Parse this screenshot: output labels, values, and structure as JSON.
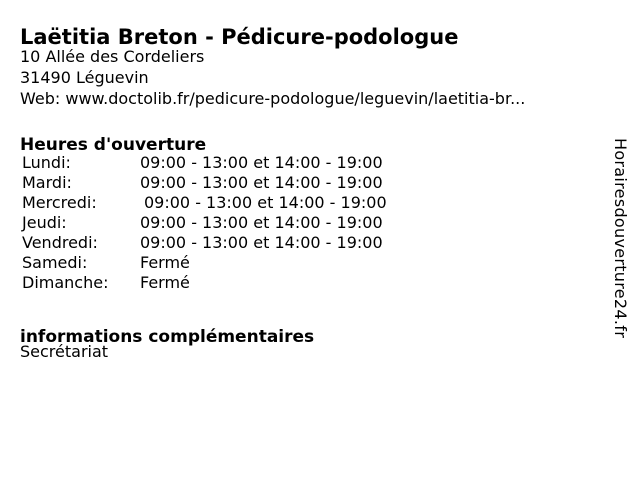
{
  "business": {
    "title": "Laëtitia Breton - Pédicure-podologue",
    "address_line1": "10 Allée des Cordeliers",
    "address_line2": "31490 Léguevin",
    "web_line": "Web: www.doctolib.fr/pedicure-podologue/leguevin/laetitia-br..."
  },
  "hours": {
    "heading": "Heures d'ouverture",
    "rows": [
      {
        "day": "Lundi:",
        "times": "09:00 - 13:00 et 14:00 - 19:00"
      },
      {
        "day": "Mardi:",
        "times": "09:00 - 13:00 et 14:00 - 19:00"
      },
      {
        "day": "Mercredi:",
        "times": "09:00 - 13:00 et 14:00 - 19:00"
      },
      {
        "day": "Jeudi:",
        "times": "09:00 - 13:00 et 14:00 - 19:00"
      },
      {
        "day": "Vendredi:",
        "times": "09:00 - 13:00 et 14:00 - 19:00"
      },
      {
        "day": "Samedi:",
        "times": "Fermé"
      },
      {
        "day": "Dimanche:",
        "times": "Fermé"
      }
    ]
  },
  "info": {
    "heading": "informations complémentaires",
    "text": "Secrétariat"
  },
  "branding": {
    "vertical_text": "Horairesdouverture24.fr"
  },
  "colors": {
    "background": "#ffffff",
    "text": "#000000"
  }
}
